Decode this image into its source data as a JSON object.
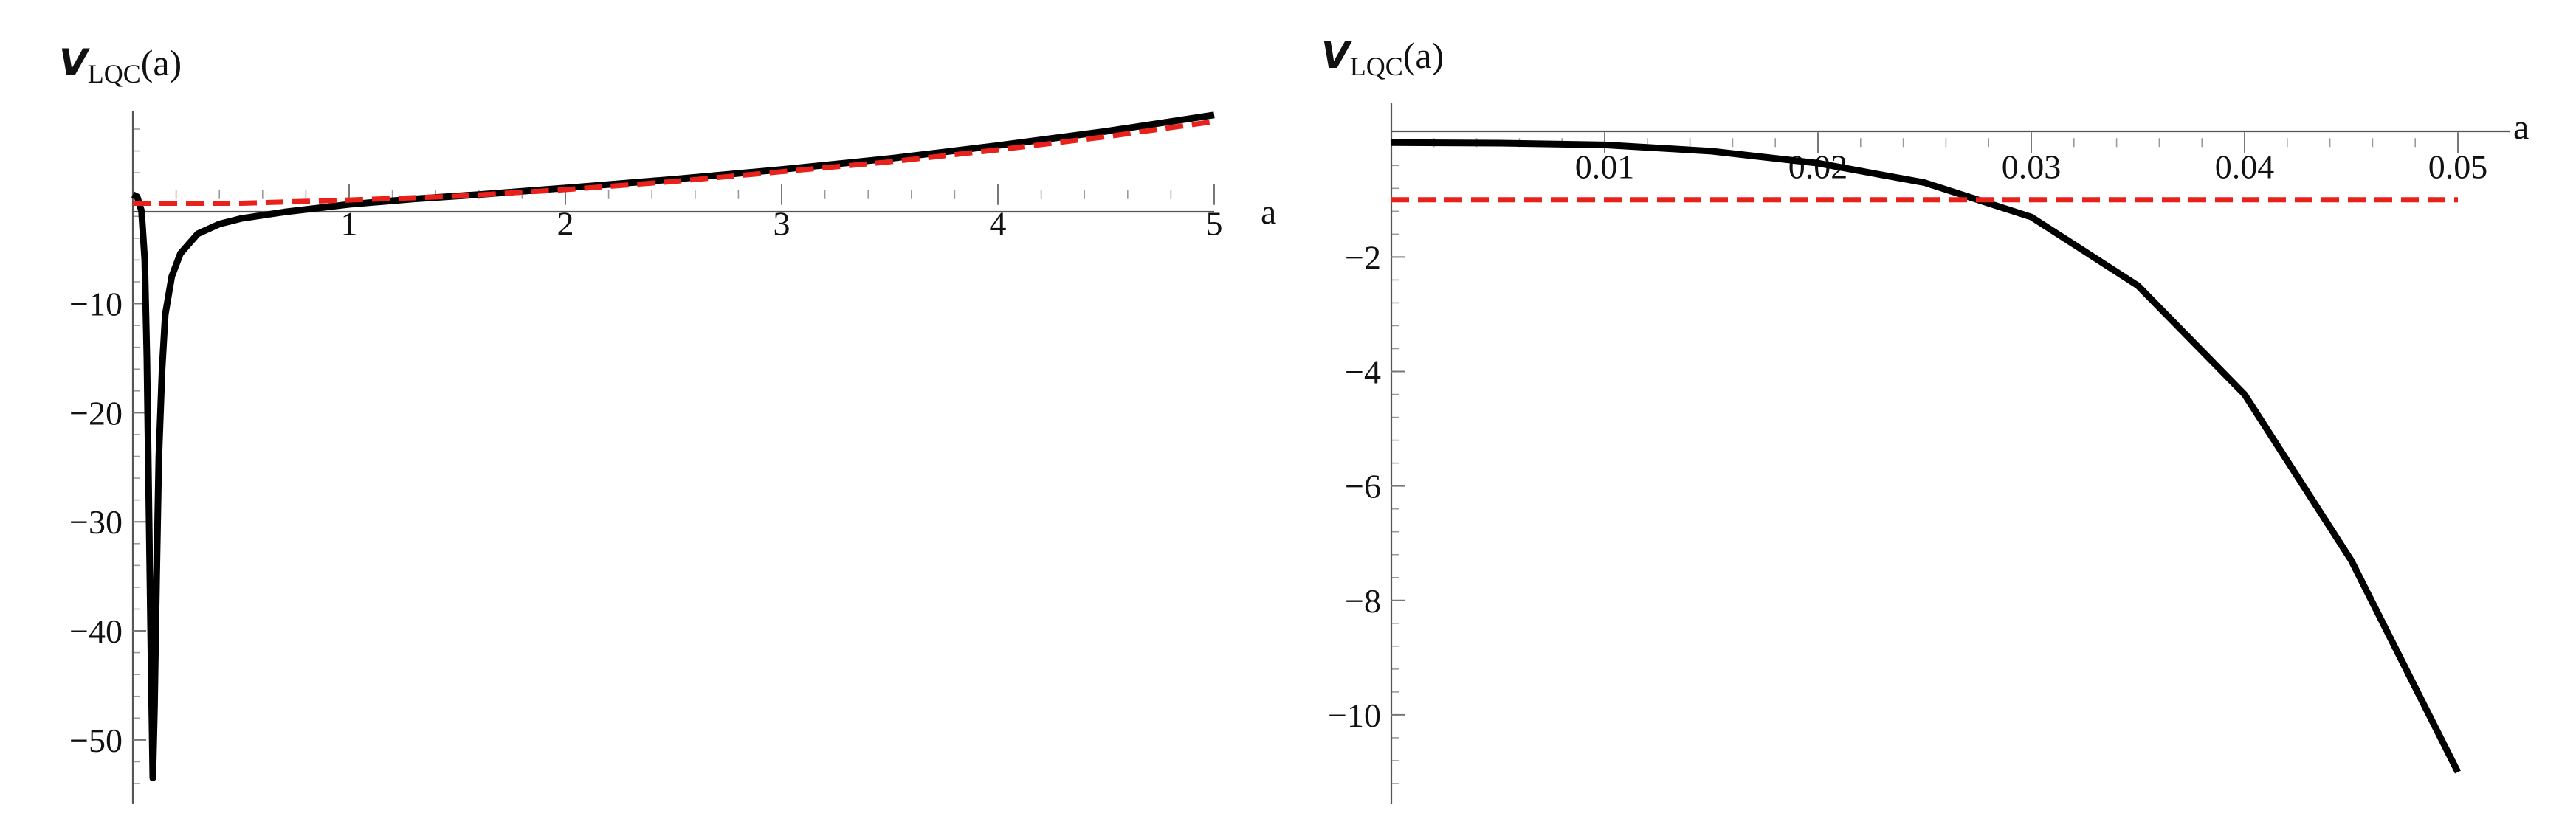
{
  "chart_data": [
    {
      "type": "line",
      "ylabel_symbol": "V",
      "ylabel_subscript": "LQC",
      "ylabel_argument": "(a)",
      "xlabel": "a",
      "xlim": [
        0,
        5
      ],
      "ylim": [
        -54,
        6
      ],
      "x_ticks": [
        {
          "value": 1,
          "label": "1"
        },
        {
          "value": 2,
          "label": "2"
        },
        {
          "value": 3,
          "label": "3"
        },
        {
          "value": 4,
          "label": "4"
        },
        {
          "value": 5,
          "label": "5"
        }
      ],
      "y_ticks": [
        {
          "value": -10,
          "label": "−10"
        },
        {
          "value": -20,
          "label": "−20"
        },
        {
          "value": -30,
          "label": "−30"
        },
        {
          "value": -40,
          "label": "−40"
        },
        {
          "value": -50,
          "label": "−50"
        }
      ],
      "x_minor_step": 0.2,
      "y_minor_step": 2,
      "series": [
        {
          "style": "solid",
          "color": "#000000",
          "points": [
            [
              0,
              0
            ],
            [
              0.02,
              -0.2
            ],
            [
              0.04,
              -1.5
            ],
            [
              0.055,
              -6
            ],
            [
              0.065,
              -15
            ],
            [
              0.075,
              -30
            ],
            [
              0.085,
              -44
            ],
            [
              0.092,
              -53.5
            ],
            [
              0.1,
              -47
            ],
            [
              0.11,
              -35
            ],
            [
              0.12,
              -24
            ],
            [
              0.135,
              -16
            ],
            [
              0.15,
              -11
            ],
            [
              0.18,
              -7.5
            ],
            [
              0.22,
              -5.4
            ],
            [
              0.3,
              -3.6
            ],
            [
              0.4,
              -2.7
            ],
            [
              0.5,
              -2.2
            ],
            [
              0.7,
              -1.6
            ],
            [
              1.0,
              -0.9
            ],
            [
              1.3,
              -0.4
            ],
            [
              1.6,
              0
            ],
            [
              2.0,
              0.6
            ],
            [
              2.5,
              1.4
            ],
            [
              3.0,
              2.3
            ],
            [
              3.5,
              3.3
            ],
            [
              4.0,
              4.5
            ],
            [
              4.5,
              5.8
            ],
            [
              5.0,
              7.3
            ]
          ]
        },
        {
          "style": "dashed",
          "color": "#e8211b",
          "points": [
            [
              0,
              -0.8
            ],
            [
              0.5,
              -0.8
            ],
            [
              1.0,
              -0.5
            ],
            [
              1.5,
              -0.15
            ],
            [
              2.0,
              0.45
            ],
            [
              2.5,
              1.2
            ],
            [
              3.0,
              2.1
            ],
            [
              3.5,
              3.0
            ],
            [
              4.0,
              4.1
            ],
            [
              4.5,
              5.3
            ],
            [
              5.0,
              6.7
            ]
          ]
        }
      ]
    },
    {
      "type": "line",
      "ylabel_symbol": "V",
      "ylabel_subscript": "LQC",
      "ylabel_argument": "(a)",
      "xlabel": "a",
      "xlim": [
        0,
        0.05
      ],
      "ylim": [
        -11.2,
        0.3
      ],
      "x_ticks": [
        {
          "value": 0.01,
          "label": "0.01"
        },
        {
          "value": 0.02,
          "label": "0.02"
        },
        {
          "value": 0.03,
          "label": "0.03"
        },
        {
          "value": 0.04,
          "label": "0.04"
        },
        {
          "value": 0.05,
          "label": "0.05"
        }
      ],
      "y_ticks": [
        {
          "value": -2,
          "label": "−2"
        },
        {
          "value": -4,
          "label": "−4"
        },
        {
          "value": -6,
          "label": "−6"
        },
        {
          "value": -8,
          "label": "−8"
        },
        {
          "value": -10,
          "label": "−10"
        }
      ],
      "x_minor_step": 0.002,
      "y_minor_step": 0.4,
      "series": [
        {
          "style": "solid",
          "color": "#000000",
          "points": [
            [
              0,
              0
            ],
            [
              0.005,
              -0.01
            ],
            [
              0.01,
              -0.04
            ],
            [
              0.015,
              -0.15
            ],
            [
              0.02,
              -0.36
            ],
            [
              0.025,
              -0.7
            ],
            [
              0.03,
              -1.3
            ],
            [
              0.035,
              -2.5
            ],
            [
              0.04,
              -4.4
            ],
            [
              0.045,
              -7.3
            ],
            [
              0.05,
              -11
            ]
          ]
        },
        {
          "style": "dashed",
          "color": "#e8211b",
          "points": [
            [
              0,
              -1
            ],
            [
              0.05,
              -1
            ]
          ]
        }
      ]
    }
  ]
}
